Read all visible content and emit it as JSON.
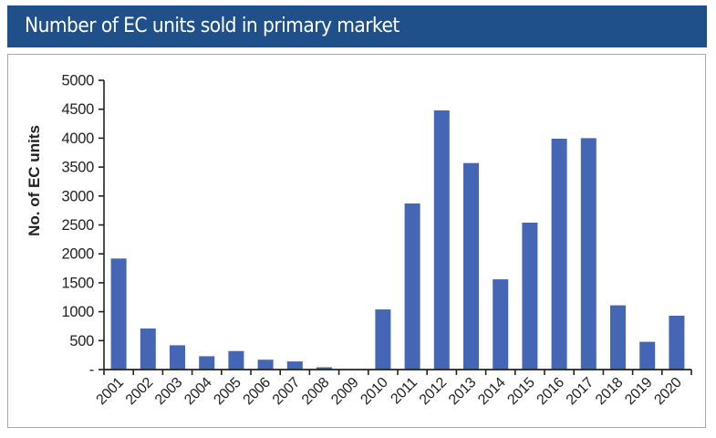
{
  "header": {
    "title": "Number of EC units sold in primary market",
    "background_color": "#1f5089"
  },
  "chart_data": {
    "type": "bar",
    "title": "Number of EC units sold in primary market",
    "xlabel": "",
    "ylabel": "No. of EC units",
    "categories": [
      "2001",
      "2002",
      "2003",
      "2004",
      "2005",
      "2006",
      "2007",
      "2008",
      "2009",
      "2010",
      "2011",
      "2012",
      "2013",
      "2014",
      "2015",
      "2016",
      "2017",
      "2018",
      "2019",
      "2020"
    ],
    "values": [
      1920,
      710,
      420,
      230,
      320,
      170,
      140,
      40,
      0,
      1040,
      2870,
      4480,
      3570,
      1560,
      2540,
      3990,
      4000,
      1110,
      480,
      930
    ],
    "ylim": [
      0,
      5000
    ],
    "yticks": [
      0,
      500,
      1000,
      1500,
      2000,
      2500,
      3000,
      3500,
      4000,
      4500,
      5000
    ],
    "ytick_labels": [
      "-",
      "500",
      "1000",
      "1500",
      "2000",
      "2500",
      "3000",
      "3500",
      "4000",
      "4500",
      "5000"
    ],
    "bar_color": "#4565b5",
    "grid": false,
    "legend": null
  }
}
